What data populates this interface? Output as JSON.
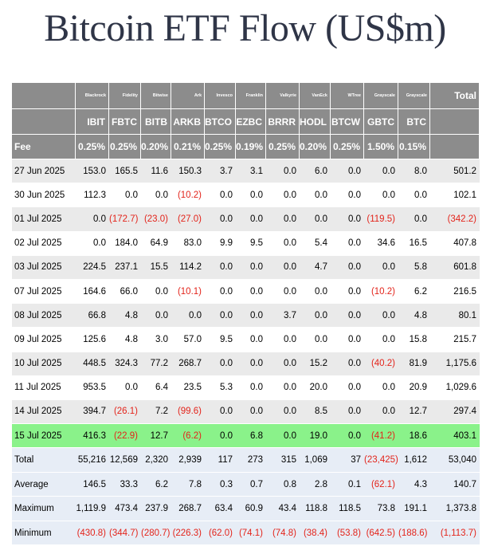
{
  "title": "Bitcoin ETF Flow (US$m)",
  "issuers": [
    "Blackrock",
    "Fidelity",
    "Bitwise",
    "Ark",
    "Invesco",
    "Franklin",
    "Valkyrie",
    "VanEck",
    "WTree",
    "Grayscale",
    "Grayscale"
  ],
  "total_header": "Total",
  "tickers": [
    "IBIT",
    "FBTC",
    "BITB",
    "ARKB",
    "BTCO",
    "EZBC",
    "BRRR",
    "HODL",
    "BTCW",
    "GBTC",
    "BTC"
  ],
  "fee_label": "Fee",
  "fees": [
    "0.25%",
    "0.25%",
    "0.20%",
    "0.21%",
    "0.25%",
    "0.19%",
    "0.25%",
    "0.20%",
    "0.25%",
    "1.50%",
    "0.15%"
  ],
  "rows": [
    {
      "date": "27 Jun 2025",
      "values": [
        "153.0",
        "165.5",
        "11.6",
        "150.3",
        "3.7",
        "3.1",
        "0.0",
        "6.0",
        "0.0",
        "0.0",
        "8.0"
      ],
      "total": "501.2"
    },
    {
      "date": "30 Jun 2025",
      "values": [
        "112.3",
        "0.0",
        "0.0",
        "(10.2)",
        "0.0",
        "0.0",
        "0.0",
        "0.0",
        "0.0",
        "0.0",
        "0.0"
      ],
      "total": "102.1"
    },
    {
      "date": "01 Jul 2025",
      "values": [
        "0.0",
        "(172.7)",
        "(23.0)",
        "(27.0)",
        "0.0",
        "0.0",
        "0.0",
        "0.0",
        "0.0",
        "(119.5)",
        "0.0"
      ],
      "total": "(342.2)"
    },
    {
      "date": "02 Jul 2025",
      "values": [
        "0.0",
        "184.0",
        "64.9",
        "83.0",
        "9.9",
        "9.5",
        "0.0",
        "5.4",
        "0.0",
        "34.6",
        "16.5"
      ],
      "total": "407.8"
    },
    {
      "date": "03 Jul 2025",
      "values": [
        "224.5",
        "237.1",
        "15.5",
        "114.2",
        "0.0",
        "0.0",
        "0.0",
        "4.7",
        "0.0",
        "0.0",
        "5.8"
      ],
      "total": "601.8"
    },
    {
      "date": "07 Jul 2025",
      "values": [
        "164.6",
        "66.0",
        "0.0",
        "(10.1)",
        "0.0",
        "0.0",
        "0.0",
        "0.0",
        "0.0",
        "(10.2)",
        "6.2"
      ],
      "total": "216.5"
    },
    {
      "date": "08 Jul 2025",
      "values": [
        "66.8",
        "4.8",
        "0.0",
        "0.0",
        "0.0",
        "0.0",
        "3.7",
        "0.0",
        "0.0",
        "0.0",
        "4.8"
      ],
      "total": "80.1"
    },
    {
      "date": "09 Jul 2025",
      "values": [
        "125.6",
        "4.8",
        "3.0",
        "57.0",
        "9.5",
        "0.0",
        "0.0",
        "0.0",
        "0.0",
        "0.0",
        "15.8"
      ],
      "total": "215.7"
    },
    {
      "date": "10 Jul 2025",
      "values": [
        "448.5",
        "324.3",
        "77.2",
        "268.7",
        "0.0",
        "0.0",
        "0.0",
        "15.2",
        "0.0",
        "(40.2)",
        "81.9"
      ],
      "total": "1,175.6"
    },
    {
      "date": "11 Jul 2025",
      "values": [
        "953.5",
        "0.0",
        "6.4",
        "23.5",
        "5.3",
        "0.0",
        "0.0",
        "20.0",
        "0.0",
        "0.0",
        "20.9"
      ],
      "total": "1,029.6"
    },
    {
      "date": "14 Jul 2025",
      "values": [
        "394.7",
        "(26.1)",
        "7.2",
        "(99.6)",
        "0.0",
        "0.0",
        "0.0",
        "8.5",
        "0.0",
        "0.0",
        "12.7"
      ],
      "total": "297.4"
    },
    {
      "date": "15 Jul 2025",
      "values": [
        "416.3",
        "(22.9)",
        "12.7",
        "(6.2)",
        "0.0",
        "6.8",
        "0.0",
        "19.0",
        "0.0",
        "(41.2)",
        "18.6"
      ],
      "total": "403.1",
      "highlight": true
    }
  ],
  "stats": [
    {
      "label": "Total",
      "values": [
        "55,216",
        "12,569",
        "2,320",
        "2,939",
        "117",
        "273",
        "315",
        "1,069",
        "37",
        "(23,425)",
        "1,612"
      ],
      "total": "53,040"
    },
    {
      "label": "Average",
      "values": [
        "146.5",
        "33.3",
        "6.2",
        "7.8",
        "0.3",
        "0.7",
        "0.8",
        "2.8",
        "0.1",
        "(62.1)",
        "4.3"
      ],
      "total": "140.7"
    },
    {
      "label": "Maximum",
      "values": [
        "1,119.9",
        "473.4",
        "237.9",
        "268.7",
        "63.4",
        "60.9",
        "43.4",
        "118.8",
        "118.5",
        "73.8",
        "191.1"
      ],
      "total": "1,373.8"
    },
    {
      "label": "Minimum",
      "values": [
        "(430.8)",
        "(344.7)",
        "(280.7)",
        "(226.3)",
        "(62.0)",
        "(74.1)",
        "(74.8)",
        "(38.4)",
        "(53.8)",
        "(642.5)",
        "(188.6)"
      ],
      "total": "(1,113.7)"
    }
  ],
  "colors": {
    "header_bg": "#8c8c8c",
    "row_alt": "#eaeaea",
    "highlight": "#8af28a",
    "stats_bg": "#e7edf6",
    "negative": "#e3241b",
    "title": "#2f3547"
  }
}
